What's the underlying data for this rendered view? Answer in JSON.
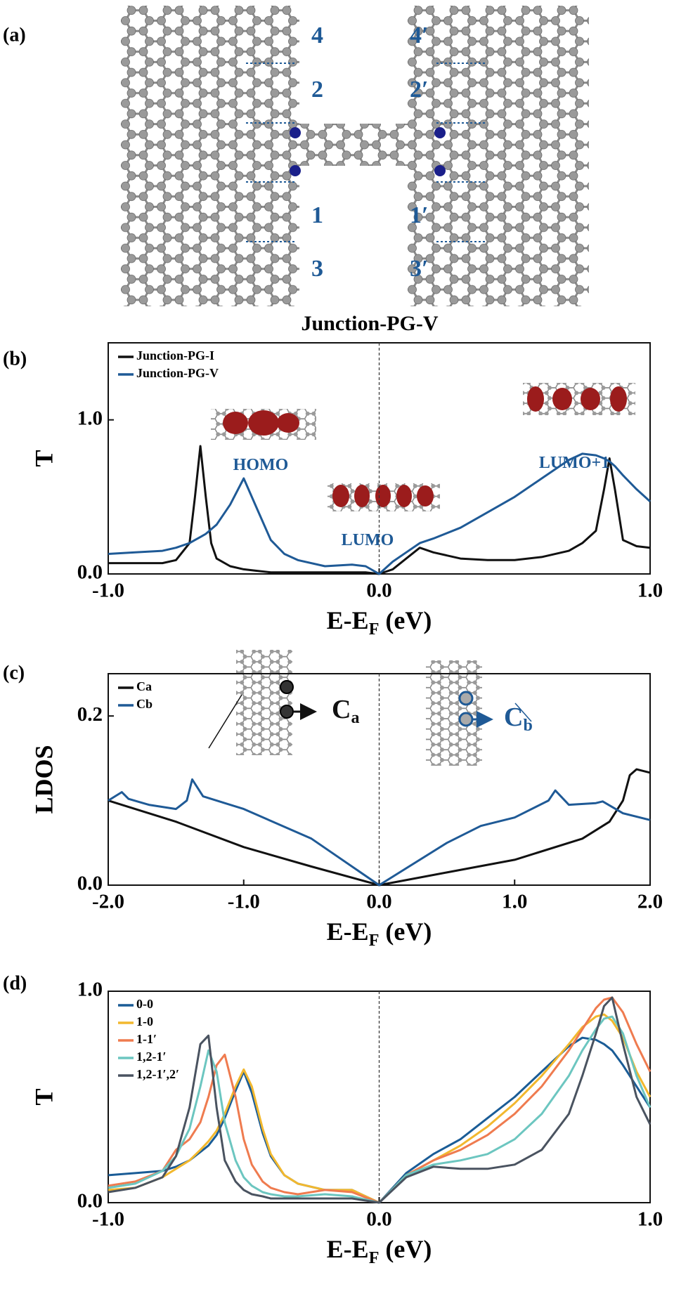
{
  "panel_a": {
    "label": "(a)",
    "sites_left": [
      "4",
      "2",
      "1",
      "3"
    ],
    "sites_right": [
      "4′",
      "2′",
      "1′",
      "3′"
    ],
    "caption": "Junction-PG-V"
  },
  "chart_data": [
    {
      "type": "line",
      "panel_label": "(b)",
      "y_label": "T",
      "x_label": [
        "E-E",
        "F",
        " (eV)"
      ],
      "xlim": [
        -1,
        1
      ],
      "ylim": [
        0,
        1.5
      ],
      "xticks": [
        {
          "value": -1,
          "label": "-1.0"
        },
        {
          "value": 0,
          "label": "0.0"
        },
        {
          "value": 1,
          "label": "1.0"
        }
      ],
      "yticks": [
        {
          "value": 0,
          "label": "0.0"
        },
        {
          "value": 1,
          "label": "1.0"
        }
      ],
      "ref_line_x": 0,
      "legend": "upper left",
      "x": [
        -1,
        -0.9,
        -0.8,
        -0.75,
        -0.7,
        -0.68,
        -0.66,
        -0.64,
        -0.62,
        -0.6,
        -0.55,
        -0.5,
        -0.45,
        -0.4,
        -0.35,
        -0.3,
        -0.2,
        -0.1,
        -0.05,
        0,
        0.05,
        0.1,
        0.15,
        0.2,
        0.3,
        0.4,
        0.5,
        0.6,
        0.7,
        0.75,
        0.8,
        0.83,
        0.85,
        0.87,
        0.9,
        0.95,
        1.0
      ],
      "series": [
        {
          "name": "Junction-PG-I",
          "color": "#111111",
          "values": [
            0.07,
            0.07,
            0.07,
            0.09,
            0.2,
            0.5,
            0.83,
            0.5,
            0.2,
            0.1,
            0.05,
            0.03,
            0.02,
            0.01,
            0.01,
            0.01,
            0.01,
            0.01,
            0.01,
            0,
            0.03,
            0.1,
            0.17,
            0.14,
            0.1,
            0.09,
            0.09,
            0.11,
            0.15,
            0.2,
            0.28,
            0.55,
            0.75,
            0.55,
            0.22,
            0.18,
            0.17
          ]
        },
        {
          "name": "Junction-PG-V",
          "color": "#1f5a96",
          "values": [
            0.13,
            0.14,
            0.15,
            0.17,
            0.2,
            0.22,
            0.24,
            0.26,
            0.29,
            0.32,
            0.45,
            0.62,
            0.42,
            0.22,
            0.13,
            0.09,
            0.05,
            0.06,
            0.05,
            0,
            0.08,
            0.14,
            0.2,
            0.23,
            0.3,
            0.4,
            0.5,
            0.62,
            0.74,
            0.78,
            0.77,
            0.75,
            0.73,
            0.7,
            0.64,
            0.55,
            0.47
          ]
        }
      ],
      "annotations": [
        {
          "text": "HOMO",
          "color": "#1f5a96"
        },
        {
          "text": "LUMO",
          "color": "#1f5a96"
        },
        {
          "text": "LUMO+1",
          "color": "#1f5a96"
        }
      ]
    },
    {
      "type": "line",
      "panel_label": "(c)",
      "y_label": "LDOS",
      "x_label": [
        "E-E",
        "F",
        " (eV)"
      ],
      "xlim": [
        -2,
        2
      ],
      "ylim": [
        0,
        0.25
      ],
      "xticks": [
        {
          "value": -2,
          "label": "-2.0"
        },
        {
          "value": -1,
          "label": "-1.0"
        },
        {
          "value": 0,
          "label": "0.0"
        },
        {
          "value": 1,
          "label": "1.0"
        },
        {
          "value": 2,
          "label": "2.0"
        }
      ],
      "yticks": [
        {
          "value": 0,
          "label": "0.0"
        },
        0.2
      ],
      "ref_line_x": 0,
      "legend": "upper left",
      "series": [
        {
          "name": "Ca",
          "color": "#111111",
          "x": [
            -2,
            -1.5,
            -1,
            -0.5,
            0,
            0.5,
            1,
            1.5,
            1.7,
            1.8,
            1.85,
            1.9,
            2
          ],
          "values": [
            0.1,
            0.075,
            0.045,
            0.022,
            0,
            0.015,
            0.03,
            0.055,
            0.075,
            0.1,
            0.13,
            0.137,
            0.133
          ]
        },
        {
          "name": "Cb",
          "color": "#1f5a96",
          "x": [
            -2,
            -1.95,
            -1.9,
            -1.85,
            -1.7,
            -1.5,
            -1.42,
            -1.38,
            -1.3,
            -1,
            -0.5,
            0,
            0.5,
            0.75,
            1,
            1.25,
            1.3,
            1.4,
            1.6,
            1.65,
            1.8,
            2
          ],
          "values": [
            0.1,
            0.105,
            0.11,
            0.102,
            0.095,
            0.09,
            0.1,
            0.125,
            0.105,
            0.09,
            0.055,
            0,
            0.05,
            0.07,
            0.08,
            0.1,
            0.112,
            0.095,
            0.097,
            0.099,
            0.085,
            0.077
          ]
        }
      ],
      "annotations": [
        {
          "text": "C",
          "sub": "a",
          "color": "#111111"
        },
        {
          "text": "C",
          "sub": "b",
          "color": "#1f5a96"
        }
      ]
    },
    {
      "type": "line",
      "panel_label": "(d)",
      "y_label": "T",
      "x_label": [
        "E-E",
        "F",
        " (eV)"
      ],
      "xlim": [
        -1,
        1
      ],
      "ylim": [
        0,
        1
      ],
      "xticks": [
        {
          "value": -1,
          "label": "-1.0"
        },
        {
          "value": 0,
          "label": "0.0"
        },
        {
          "value": 1,
          "label": "1.0"
        }
      ],
      "yticks": [
        {
          "value": 0,
          "label": "0.0"
        },
        {
          "value": 1,
          "label": "1.0"
        }
      ],
      "ref_line_x": 0,
      "legend": "upper left",
      "x": [
        -1,
        -0.9,
        -0.8,
        -0.75,
        -0.7,
        -0.66,
        -0.63,
        -0.6,
        -0.57,
        -0.53,
        -0.5,
        -0.47,
        -0.43,
        -0.4,
        -0.35,
        -0.3,
        -0.2,
        -0.1,
        0,
        0.1,
        0.2,
        0.3,
        0.4,
        0.5,
        0.6,
        0.7,
        0.75,
        0.8,
        0.83,
        0.86,
        0.9,
        0.95,
        1.0
      ],
      "series": [
        {
          "name": "0-0",
          "color": "#1a5c96",
          "values": [
            0.13,
            0.14,
            0.15,
            0.17,
            0.2,
            0.24,
            0.27,
            0.32,
            0.4,
            0.53,
            0.62,
            0.52,
            0.33,
            0.22,
            0.13,
            0.09,
            0.06,
            0.06,
            0,
            0.14,
            0.23,
            0.3,
            0.4,
            0.5,
            0.62,
            0.74,
            0.78,
            0.77,
            0.75,
            0.72,
            0.65,
            0.55,
            0.45
          ]
        },
        {
          "name": "1-0",
          "color": "#f2b82e",
          "values": [
            0.06,
            0.07,
            0.12,
            0.16,
            0.2,
            0.25,
            0.29,
            0.34,
            0.42,
            0.55,
            0.63,
            0.55,
            0.35,
            0.23,
            0.13,
            0.09,
            0.06,
            0.06,
            0,
            0.13,
            0.2,
            0.27,
            0.36,
            0.47,
            0.6,
            0.75,
            0.83,
            0.88,
            0.89,
            0.86,
            0.78,
            0.62,
            0.5
          ]
        },
        {
          "name": "1-1′",
          "color": "#ef7b4f",
          "values": [
            0.08,
            0.1,
            0.15,
            0.25,
            0.3,
            0.38,
            0.5,
            0.65,
            0.7,
            0.5,
            0.3,
            0.18,
            0.1,
            0.07,
            0.05,
            0.04,
            0.06,
            0.05,
            0,
            0.13,
            0.2,
            0.25,
            0.32,
            0.42,
            0.55,
            0.72,
            0.82,
            0.92,
            0.96,
            0.97,
            0.9,
            0.75,
            0.62
          ]
        },
        {
          "name": "1,2-1′",
          "color": "#6cc6c0",
          "values": [
            0.07,
            0.09,
            0.15,
            0.22,
            0.35,
            0.55,
            0.72,
            0.62,
            0.38,
            0.2,
            0.12,
            0.08,
            0.05,
            0.04,
            0.03,
            0.03,
            0.04,
            0.03,
            0,
            0.13,
            0.18,
            0.2,
            0.23,
            0.3,
            0.42,
            0.6,
            0.72,
            0.82,
            0.87,
            0.88,
            0.8,
            0.6,
            0.45
          ]
        },
        {
          "name": "1,2-1′,2′",
          "color": "#4a5360",
          "values": [
            0.05,
            0.07,
            0.12,
            0.22,
            0.45,
            0.75,
            0.79,
            0.45,
            0.2,
            0.1,
            0.06,
            0.04,
            0.03,
            0.02,
            0.02,
            0.02,
            0.02,
            0.02,
            0,
            0.12,
            0.17,
            0.16,
            0.16,
            0.18,
            0.25,
            0.42,
            0.6,
            0.8,
            0.93,
            0.97,
            0.75,
            0.5,
            0.37
          ]
        }
      ]
    }
  ]
}
